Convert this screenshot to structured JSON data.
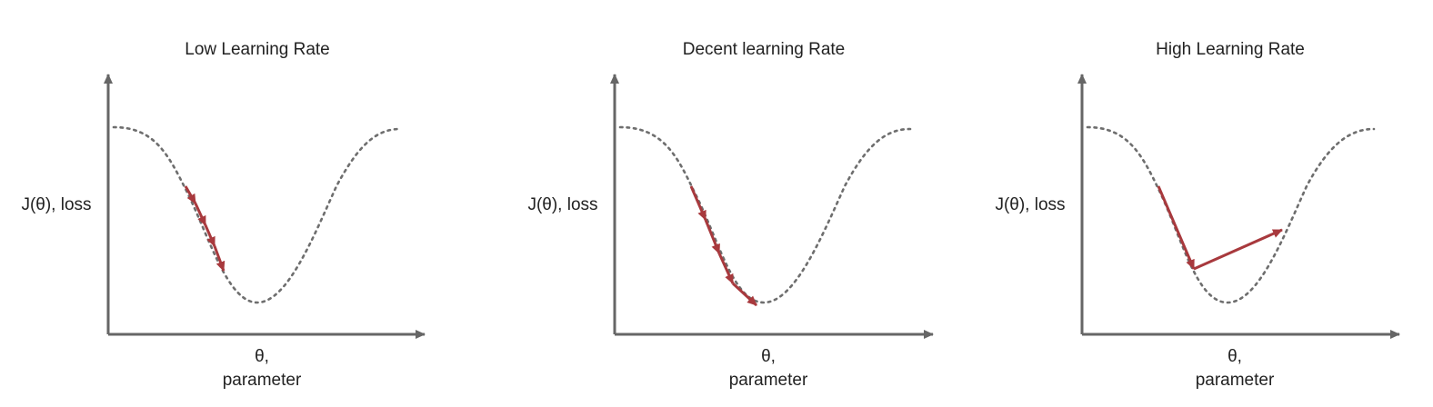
{
  "panels": [
    {
      "title": "Low Learning Rate",
      "ylabel": "J(θ), loss",
      "xlabel_line1": "θ,",
      "xlabel_line2": "parameter",
      "learning_rate": "low",
      "step_count": 4
    },
    {
      "title": "Decent learning Rate",
      "ylabel": "J(θ), loss",
      "xlabel_line1": "θ,",
      "xlabel_line2": "parameter",
      "learning_rate": "decent",
      "step_count": 4
    },
    {
      "title": "High Learning Rate",
      "ylabel": "J(θ), loss",
      "xlabel_line1": "θ,",
      "xlabel_line2": "parameter",
      "learning_rate": "high",
      "step_count": 2
    }
  ],
  "colors": {
    "axis": "#666666",
    "curve": "#6e6e6e",
    "step_arrow": "#a8393d",
    "text": "#222222",
    "background": "#ffffff"
  }
}
